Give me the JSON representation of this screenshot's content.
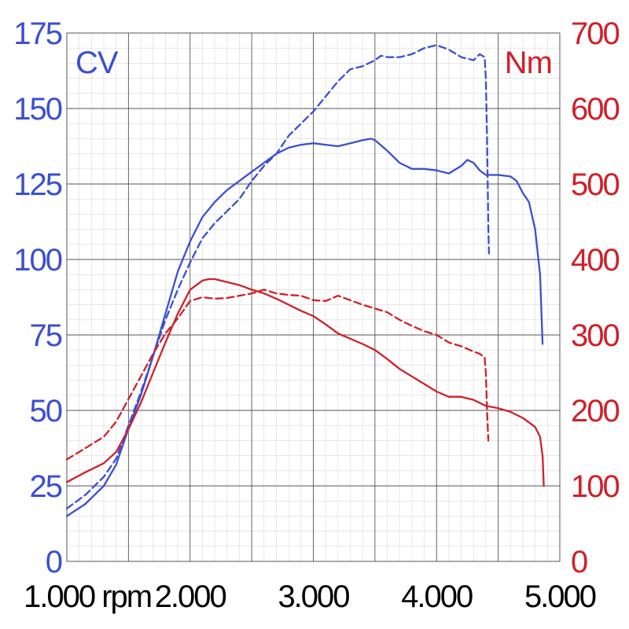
{
  "chart_data": {
    "type": "line",
    "x_ticks": [
      "1.000 rpm",
      "2.000",
      "3.000",
      "4.000",
      "5.000"
    ],
    "xlim": [
      1000,
      5000
    ],
    "y_left": {
      "label": "CV",
      "ticks": [
        "0",
        "25",
        "50",
        "75",
        "100",
        "125",
        "150",
        "175"
      ],
      "lim": [
        0,
        175
      ],
      "color": "#3b4fd1"
    },
    "y_right": {
      "label": "Nm",
      "ticks": [
        "0",
        "100",
        "200",
        "300",
        "400",
        "500",
        "600",
        "700"
      ],
      "lim": [
        0,
        700
      ],
      "color": "#d0202a"
    },
    "grid": true,
    "series": [
      {
        "axis": "left",
        "style": "solid",
        "color": "#3b4fd1",
        "points": [
          [
            1000,
            15
          ],
          [
            1150,
            19
          ],
          [
            1300,
            25
          ],
          [
            1400,
            32
          ],
          [
            1500,
            44
          ],
          [
            1600,
            55
          ],
          [
            1700,
            68
          ],
          [
            1800,
            82
          ],
          [
            1900,
            96
          ],
          [
            2000,
            106
          ],
          [
            2100,
            114
          ],
          [
            2200,
            119
          ],
          [
            2300,
            123
          ],
          [
            2400,
            126
          ],
          [
            2500,
            129
          ],
          [
            2600,
            132
          ],
          [
            2700,
            135
          ],
          [
            2800,
            137
          ],
          [
            2900,
            138
          ],
          [
            3000,
            138.5
          ],
          [
            3100,
            138
          ],
          [
            3200,
            137.5
          ],
          [
            3300,
            138.5
          ],
          [
            3400,
            139.5
          ],
          [
            3470,
            140
          ],
          [
            3500,
            139.5
          ],
          [
            3600,
            136
          ],
          [
            3700,
            132
          ],
          [
            3800,
            130
          ],
          [
            3900,
            130
          ],
          [
            4000,
            129.5
          ],
          [
            4100,
            128.5
          ],
          [
            4200,
            131
          ],
          [
            4250,
            133
          ],
          [
            4300,
            132
          ],
          [
            4350,
            129.5
          ],
          [
            4400,
            128
          ],
          [
            4500,
            128
          ],
          [
            4600,
            127.5
          ],
          [
            4650,
            126
          ],
          [
            4700,
            122
          ],
          [
            4750,
            119
          ],
          [
            4800,
            110
          ],
          [
            4840,
            95
          ],
          [
            4860,
            72
          ]
        ]
      },
      {
        "axis": "left",
        "style": "dashed",
        "color": "#3b4fd1",
        "points": [
          [
            1000,
            17.5
          ],
          [
            1150,
            22
          ],
          [
            1300,
            28
          ],
          [
            1400,
            34
          ],
          [
            1500,
            45
          ],
          [
            1600,
            56
          ],
          [
            1700,
            68
          ],
          [
            1800,
            80
          ],
          [
            1900,
            90
          ],
          [
            2000,
            99
          ],
          [
            2100,
            107
          ],
          [
            2200,
            112
          ],
          [
            2300,
            116
          ],
          [
            2400,
            120
          ],
          [
            2500,
            126
          ],
          [
            2600,
            131
          ],
          [
            2700,
            135
          ],
          [
            2800,
            141
          ],
          [
            2900,
            145
          ],
          [
            3000,
            149
          ],
          [
            3100,
            154
          ],
          [
            3200,
            159
          ],
          [
            3300,
            163
          ],
          [
            3400,
            164
          ],
          [
            3500,
            166
          ],
          [
            3550,
            167.5
          ],
          [
            3600,
            167
          ],
          [
            3700,
            167
          ],
          [
            3800,
            168
          ],
          [
            3900,
            170
          ],
          [
            4000,
            171
          ],
          [
            4100,
            169.5
          ],
          [
            4200,
            167
          ],
          [
            4300,
            166
          ],
          [
            4350,
            168
          ],
          [
            4390,
            167
          ],
          [
            4400,
            160
          ],
          [
            4410,
            140
          ],
          [
            4420,
            110
          ],
          [
            4425,
            102
          ]
        ]
      },
      {
        "axis": "right",
        "style": "solid",
        "color": "#d0202a",
        "points": [
          [
            1000,
            105
          ],
          [
            1150,
            118
          ],
          [
            1300,
            130
          ],
          [
            1400,
            145
          ],
          [
            1500,
            175
          ],
          [
            1600,
            210
          ],
          [
            1700,
            250
          ],
          [
            1800,
            290
          ],
          [
            1900,
            328
          ],
          [
            2000,
            360
          ],
          [
            2100,
            372
          ],
          [
            2150,
            374
          ],
          [
            2200,
            374
          ],
          [
            2300,
            370
          ],
          [
            2400,
            366
          ],
          [
            2500,
            360
          ],
          [
            2600,
            355
          ],
          [
            2700,
            348
          ],
          [
            2800,
            340
          ],
          [
            2900,
            332
          ],
          [
            3000,
            325
          ],
          [
            3100,
            314
          ],
          [
            3200,
            302
          ],
          [
            3300,
            295
          ],
          [
            3400,
            288
          ],
          [
            3500,
            280
          ],
          [
            3600,
            268
          ],
          [
            3700,
            255
          ],
          [
            3800,
            245
          ],
          [
            3900,
            235
          ],
          [
            4000,
            225
          ],
          [
            4100,
            218
          ],
          [
            4200,
            218
          ],
          [
            4300,
            214
          ],
          [
            4400,
            206
          ],
          [
            4500,
            203
          ],
          [
            4600,
            198
          ],
          [
            4700,
            190
          ],
          [
            4800,
            178
          ],
          [
            4840,
            165
          ],
          [
            4860,
            140
          ],
          [
            4870,
            100
          ]
        ]
      },
      {
        "axis": "right",
        "style": "dashed",
        "color": "#d0202a",
        "points": [
          [
            1000,
            135
          ],
          [
            1150,
            150
          ],
          [
            1300,
            165
          ],
          [
            1400,
            185
          ],
          [
            1500,
            215
          ],
          [
            1600,
            245
          ],
          [
            1700,
            275
          ],
          [
            1800,
            302
          ],
          [
            1900,
            322
          ],
          [
            2000,
            345
          ],
          [
            2100,
            350
          ],
          [
            2200,
            348
          ],
          [
            2300,
            349
          ],
          [
            2400,
            352
          ],
          [
            2500,
            355
          ],
          [
            2600,
            360
          ],
          [
            2700,
            355
          ],
          [
            2800,
            353
          ],
          [
            2900,
            352
          ],
          [
            3000,
            346
          ],
          [
            3100,
            345
          ],
          [
            3200,
            352
          ],
          [
            3300,
            346
          ],
          [
            3400,
            340
          ],
          [
            3500,
            335
          ],
          [
            3600,
            330
          ],
          [
            3700,
            320
          ],
          [
            3800,
            312
          ],
          [
            3900,
            305
          ],
          [
            4000,
            300
          ],
          [
            4100,
            290
          ],
          [
            4200,
            285
          ],
          [
            4300,
            278
          ],
          [
            4350,
            275
          ],
          [
            4390,
            270
          ],
          [
            4400,
            250
          ],
          [
            4410,
            200
          ],
          [
            4420,
            160
          ]
        ]
      }
    ]
  }
}
